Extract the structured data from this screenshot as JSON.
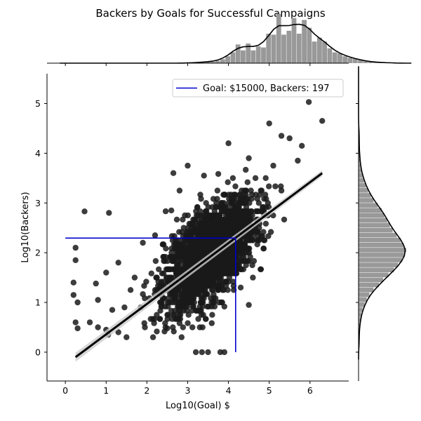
{
  "chart_data": {
    "type": "scatter",
    "title": "Backers by Goals for Successful Campaigns",
    "xlabel": "Log10(Goal) $",
    "ylabel": "Log10(Backers)",
    "xlim": [
      -0.45,
      6.95
    ],
    "ylim": [
      -0.58,
      5.6
    ],
    "x_ticks": [
      0,
      1,
      2,
      3,
      4,
      5,
      6
    ],
    "y_ticks": [
      0,
      1,
      2,
      3,
      4,
      5
    ],
    "point_color": "#1a1a1a",
    "regression": {
      "x": [
        0.25,
        6.3
      ],
      "y": [
        -0.1,
        3.6
      ],
      "color": "#000000"
    },
    "reference": {
      "label": "Goal: $15000, Backers: 197",
      "x": 4.176,
      "y": 2.294,
      "color": "#0000cc"
    },
    "legend": {
      "position": "top-right",
      "entries": [
        "Goal: $15000, Backers: 197"
      ]
    },
    "outliers": [
      [
        0.47,
        2.83
      ],
      [
        1.07,
        2.8
      ],
      [
        5.97,
        5.03
      ],
      [
        6.3,
        4.65
      ],
      [
        5.0,
        4.6
      ],
      [
        5.3,
        4.35
      ],
      [
        5.5,
        4.3
      ],
      [
        5.8,
        4.15
      ],
      [
        4.0,
        4.2
      ],
      [
        2.65,
        3.6
      ],
      [
        3.0,
        3.75
      ],
      [
        0.25,
        2.1
      ],
      [
        0.25,
        1.85
      ],
      [
        0.2,
        1.4
      ],
      [
        0.2,
        1.15
      ],
      [
        0.3,
        1.0
      ],
      [
        0.25,
        0.6
      ],
      [
        0.3,
        0.48
      ],
      [
        0.6,
        0.6
      ],
      [
        0.8,
        0.5
      ],
      [
        1.0,
        0.45
      ],
      [
        1.05,
        0.35
      ],
      [
        1.3,
        0.4
      ],
      [
        1.5,
        0.3
      ],
      [
        0.8,
        1.05
      ],
      [
        1.0,
        1.6
      ],
      [
        1.3,
        1.8
      ],
      [
        0.75,
        1.38
      ],
      [
        1.6,
        1.25
      ],
      [
        1.45,
        0.9
      ],
      [
        3.2,
        0.0
      ],
      [
        3.35,
        0.0
      ],
      [
        3.5,
        0.0
      ],
      [
        3.8,
        0.0
      ],
      [
        3.9,
        0.0
      ],
      [
        4.5,
        0.95
      ],
      [
        4.3,
        1.3
      ],
      [
        4.6,
        1.5
      ],
      [
        1.7,
        1.5
      ],
      [
        1.9,
        2.2
      ],
      [
        2.2,
        2.35
      ],
      [
        2.6,
        2.85
      ],
      [
        2.8,
        3.25
      ],
      [
        3.4,
        3.55
      ],
      [
        4.5,
        3.9
      ],
      [
        5.7,
        3.85
      ],
      [
        5.1,
        3.75
      ],
      [
        5.3,
        3.25
      ],
      [
        1.95,
        0.5
      ],
      [
        2.15,
        0.3
      ],
      [
        2.5,
        0.48
      ],
      [
        2.85,
        0.3
      ],
      [
        1.85,
        0.9
      ],
      [
        1.15,
        0.85
      ]
    ],
    "x_hist": {
      "bins_start": -0.2,
      "bin_width": 0.125,
      "counts": [
        0,
        0,
        0,
        0,
        0,
        0,
        0,
        0,
        0,
        0,
        0,
        0,
        0,
        0,
        0,
        0,
        0,
        0,
        0,
        0,
        0,
        0,
        0,
        0,
        0,
        0,
        1,
        1,
        2,
        3,
        3,
        5,
        8,
        14,
        22,
        38,
        26,
        40,
        26,
        34,
        32,
        60,
        58,
        100,
        58,
        66,
        92,
        60,
        88,
        72,
        44,
        52,
        44,
        30,
        22,
        20,
        14,
        11,
        9,
        6,
        4,
        3,
        2,
        1,
        1,
        1,
        0,
        0,
        0,
        0
      ]
    },
    "y_hist": {
      "bins_start": -0.2,
      "bin_width": 0.1,
      "counts": [
        0,
        0,
        0,
        1,
        1,
        1,
        1,
        2,
        3,
        4,
        6,
        9,
        12,
        16,
        22,
        30,
        36,
        44,
        52,
        58,
        64,
        68,
        70,
        66,
        62,
        56,
        50,
        46,
        42,
        38,
        34,
        28,
        22,
        18,
        14,
        11,
        8,
        6,
        4,
        3,
        2,
        2,
        1,
        1,
        1,
        1,
        1,
        0,
        0,
        0,
        0,
        0,
        0,
        0,
        0,
        0,
        0,
        0,
        0,
        0
      ]
    }
  }
}
